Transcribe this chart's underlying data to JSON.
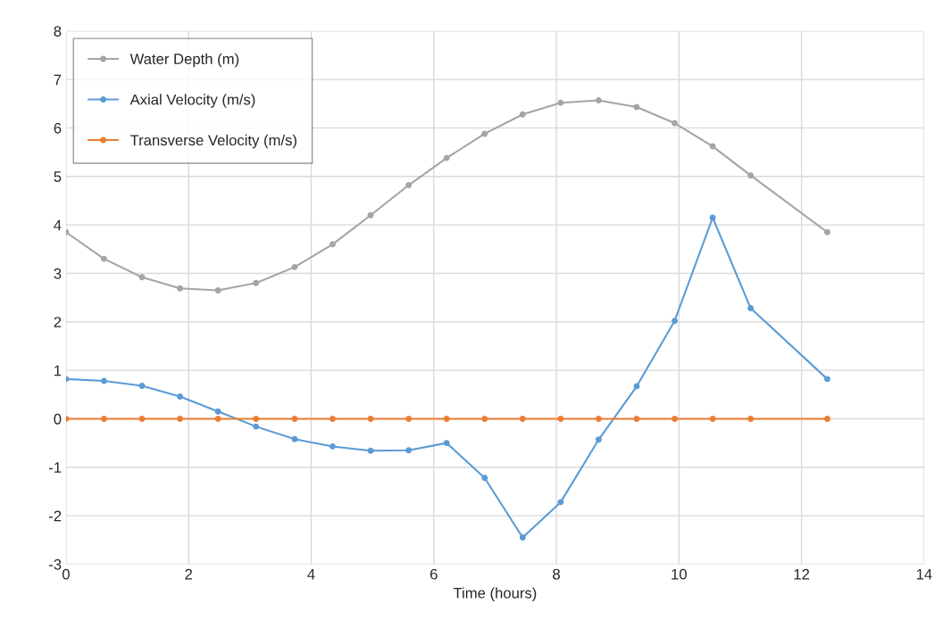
{
  "chart_data": {
    "type": "line",
    "xlabel": "Time (hours)",
    "x": [
      0,
      0.62,
      1.24,
      1.86,
      2.48,
      3.1,
      3.73,
      4.35,
      4.97,
      5.59,
      6.21,
      6.83,
      7.45,
      8.07,
      8.69,
      9.31,
      9.93,
      10.55,
      11.17,
      12.42
    ],
    "series": [
      {
        "name": "Water Depth (m)",
        "color": "#a5a5a5",
        "values": [
          3.85,
          3.3,
          2.92,
          2.69,
          2.65,
          2.8,
          3.13,
          3.6,
          4.2,
          4.82,
          5.38,
          5.88,
          6.28,
          6.52,
          6.57,
          6.43,
          6.1,
          5.62,
          5.02,
          3.85
        ]
      },
      {
        "name": "Axial Velocity (m/s)",
        "color": "#5b9bd5",
        "values": [
          0.82,
          0.78,
          0.68,
          0.46,
          0.15,
          -0.16,
          -0.42,
          -0.57,
          -0.66,
          -0.65,
          -0.5,
          -1.22,
          -2.45,
          -1.72,
          -0.43,
          0.67,
          2.02,
          4.15,
          2.28,
          0.82
        ]
      },
      {
        "name": "Transverse Velocity (m/s)",
        "color": "#ed7d31",
        "values": [
          0,
          0,
          0,
          0,
          0,
          0,
          0,
          0,
          0,
          0,
          0,
          0,
          0,
          0,
          0,
          0,
          0,
          0,
          0,
          0
        ]
      }
    ],
    "xlim": [
      0,
      14
    ],
    "xticks": [
      0,
      2,
      4,
      6,
      8,
      10,
      12,
      14
    ],
    "ylim": [
      -3,
      8
    ],
    "yticks": [
      -3,
      -2,
      -1,
      0,
      1,
      2,
      3,
      4,
      5,
      6,
      7,
      8
    ],
    "grid": true,
    "legend": "top left",
    "marker": "circle",
    "line_style": "solid"
  }
}
